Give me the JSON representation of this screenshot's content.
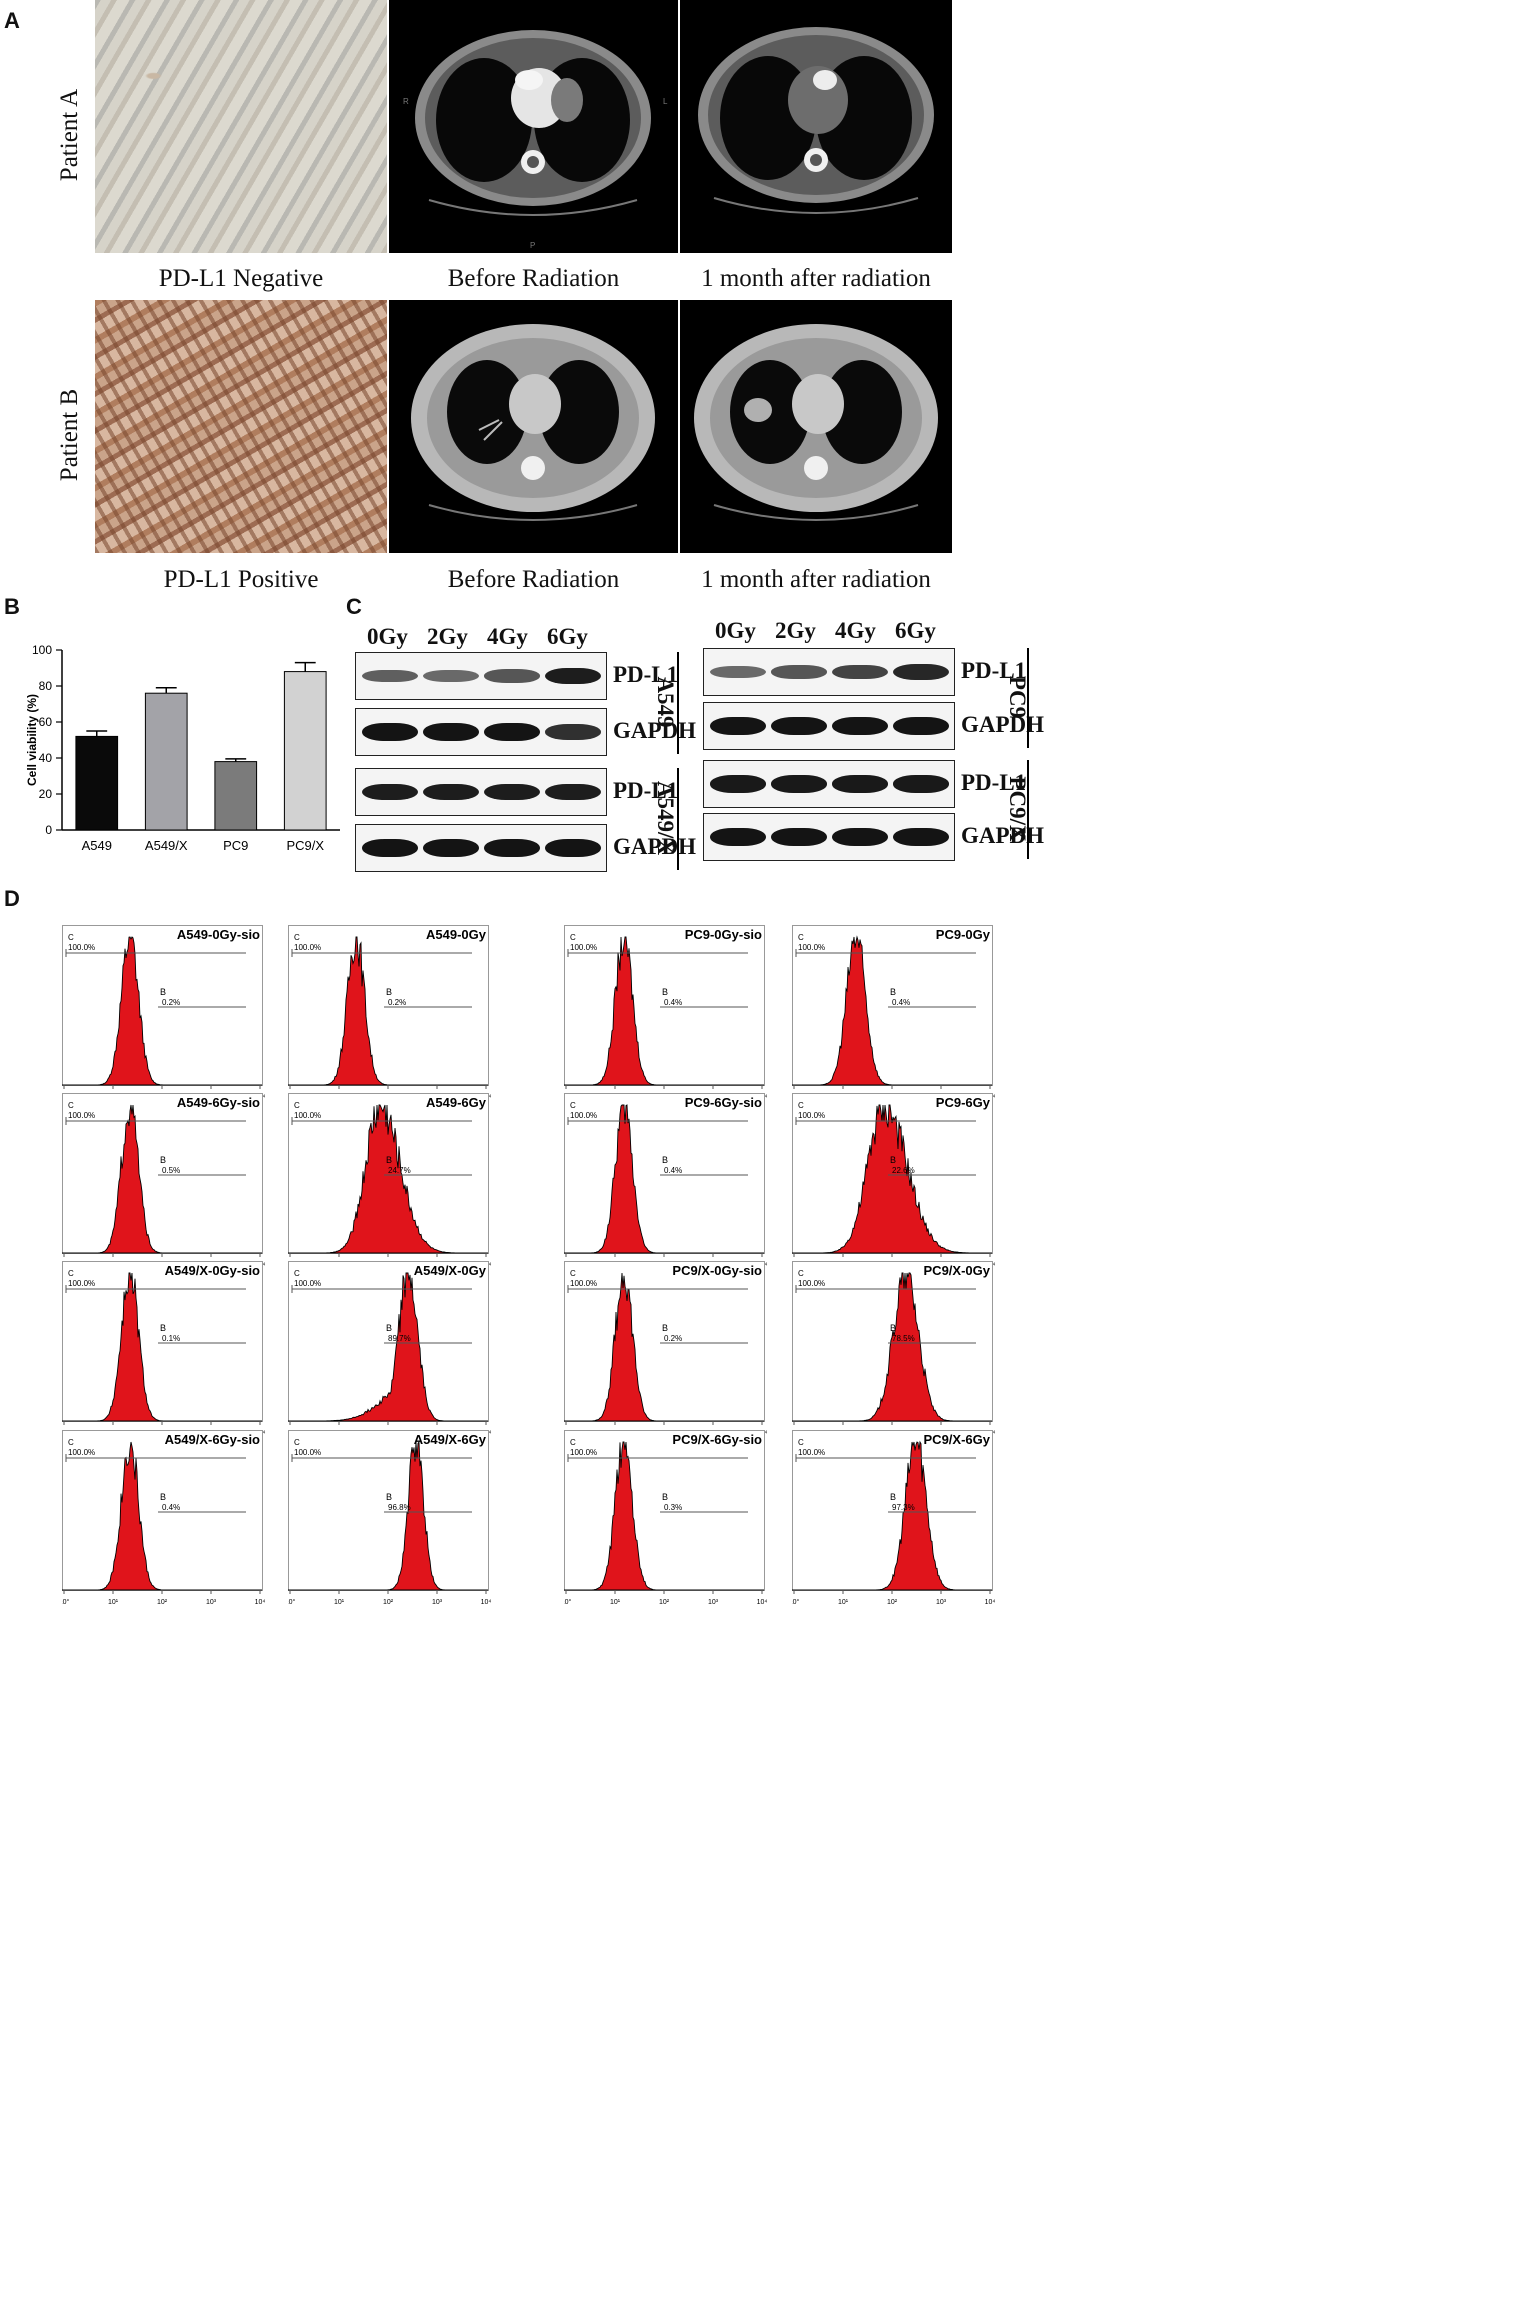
{
  "panels": {
    "A": "A",
    "B": "B",
    "C": "C",
    "D": "D"
  },
  "panel_a": {
    "rows": [
      {
        "patient": "Patient A",
        "ihc_caption": "PD-L1  Negative",
        "ct1_caption": "Before Radiation",
        "ct2_caption": "1 month after radiation"
      },
      {
        "patient": "Patient B",
        "ihc_caption": "PD-L1  Positive",
        "ct1_caption": "Before Radiation",
        "ct2_caption": "1 month after radiation"
      }
    ],
    "ct_markers": {
      "r": "R",
      "l": "L",
      "p": "P"
    }
  },
  "chart_data": {
    "type": "bar",
    "categories": [
      "A549",
      "A549/X",
      "PC9",
      "PC9/X"
    ],
    "values": [
      52,
      76,
      38,
      88
    ],
    "errors": [
      3,
      3,
      1.5,
      5
    ],
    "colors": [
      "#0a0a0a",
      "#a3a3a8",
      "#7b7b7b",
      "#d2d2d2"
    ],
    "ylabel": "Cell viability (%)",
    "ylim": [
      0,
      100
    ],
    "yticks": [
      "0",
      "20",
      "40",
      "60",
      "80",
      "100"
    ]
  },
  "panel_c": {
    "left": {
      "doses": [
        "0Gy",
        "2Gy",
        "4Gy",
        "6Gy"
      ],
      "rows": [
        {
          "label": "PD-L1",
          "intensity": [
            0.55,
            0.5,
            0.6,
            0.9
          ]
        },
        {
          "label": "GAPDH",
          "intensity": [
            0.95,
            0.95,
            0.95,
            0.8
          ]
        },
        {
          "label": "PD-L1",
          "intensity": [
            0.9,
            0.9,
            0.9,
            0.9
          ]
        },
        {
          "label": "GAPDH",
          "intensity": [
            0.95,
            0.95,
            0.95,
            0.95
          ]
        }
      ],
      "cell_lines": [
        "A549",
        "A549/X"
      ]
    },
    "right": {
      "doses": [
        "0Gy",
        "2Gy",
        "4Gy",
        "6Gy"
      ],
      "rows": [
        {
          "label": "PD-L1",
          "intensity": [
            0.5,
            0.6,
            0.7,
            0.85
          ]
        },
        {
          "label": "GAPDH",
          "intensity": [
            0.95,
            0.95,
            0.95,
            0.95
          ]
        },
        {
          "label": "PD-L1",
          "intensity": [
            0.92,
            0.92,
            0.92,
            0.92
          ]
        },
        {
          "label": "GAPDH",
          "intensity": [
            0.95,
            0.95,
            0.95,
            0.95
          ]
        }
      ],
      "cell_lines": [
        "PC9",
        "PC9/X"
      ]
    }
  },
  "panel_d": {
    "gate_c_label": "C",
    "gate_b_label": "B",
    "gate_c_pct": "100.0%",
    "x_tick_labels": [
      "10°",
      "10¹",
      "10²",
      "10³",
      "10⁴"
    ],
    "plots": [
      {
        "title": "A549-0Gy-sio",
        "b_pct": "0.2%",
        "peak": 0.34,
        "width": 0.09,
        "tail": 0
      },
      {
        "title": "A549-0Gy",
        "b_pct": "0.2%",
        "peak": 0.34,
        "width": 0.09,
        "tail": 0
      },
      {
        "title": "PC9-0Gy-sio",
        "b_pct": "0.4%",
        "peak": 0.3,
        "width": 0.09,
        "tail": 0
      },
      {
        "title": "PC9-0Gy",
        "b_pct": "0.4%",
        "peak": 0.32,
        "width": 0.1,
        "tail": 0
      },
      {
        "title": "A549-6Gy-sio",
        "b_pct": "0.5%",
        "peak": 0.34,
        "width": 0.09,
        "tail": 0
      },
      {
        "title": "A549-6Gy",
        "b_pct": "24.7%",
        "peak": 0.46,
        "width": 0.15,
        "tail": 0.1
      },
      {
        "title": "PC9-6Gy-sio",
        "b_pct": "0.4%",
        "peak": 0.3,
        "width": 0.09,
        "tail": 0
      },
      {
        "title": "PC9-6Gy",
        "b_pct": "22.6%",
        "peak": 0.46,
        "width": 0.17,
        "tail": 0.1
      },
      {
        "title": "A549/X-0Gy-sio",
        "b_pct": "0.1%",
        "peak": 0.34,
        "width": 0.09,
        "tail": 0
      },
      {
        "title": "A549/X-0Gy",
        "b_pct": "89.7%",
        "peak": 0.6,
        "width": 0.1,
        "tail": -0.1
      },
      {
        "title": "PC9/X-0Gy-sio",
        "b_pct": "0.2%",
        "peak": 0.3,
        "width": 0.09,
        "tail": 0
      },
      {
        "title": "PC9/X-0Gy",
        "b_pct": "78.5%",
        "peak": 0.57,
        "width": 0.13,
        "tail": 0
      },
      {
        "title": "A549/X-6Gy-sio",
        "b_pct": "0.4%",
        "peak": 0.34,
        "width": 0.09,
        "tail": 0
      },
      {
        "title": "A549/X-6Gy",
        "b_pct": "96.8%",
        "peak": 0.64,
        "width": 0.08,
        "tail": 0
      },
      {
        "title": "PC9/X-6Gy-sio",
        "b_pct": "0.3%",
        "peak": 0.3,
        "width": 0.09,
        "tail": 0
      },
      {
        "title": "PC9/X-6Gy",
        "b_pct": "97.3%",
        "peak": 0.62,
        "width": 0.11,
        "tail": 0
      }
    ]
  }
}
